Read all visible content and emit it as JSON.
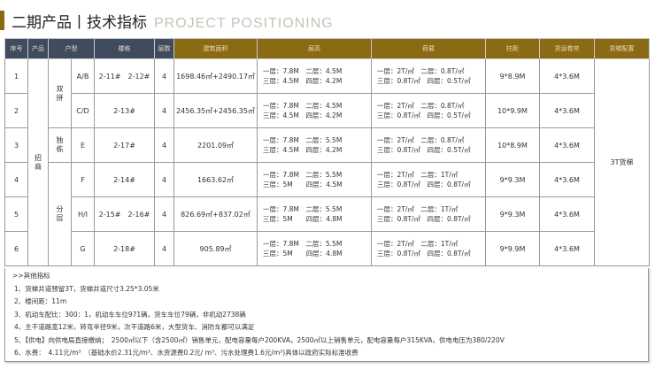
{
  "title": {
    "cn": "二期产品丨技术指标",
    "en": "PROJECT POSITIONING"
  },
  "headers": {
    "no": "序号",
    "product": "产品",
    "type": "户型",
    "building": "楼栋",
    "floors": "层数",
    "area": "建筑面积",
    "height": "层高",
    "load": "荷载",
    "column": "柱距",
    "shutter": "货运卷帘",
    "elevator": "货梯配置"
  },
  "product": "招商",
  "groups": [
    "双拼",
    "独栋",
    "分层"
  ],
  "elevator": "3T货梯",
  "rows": [
    {
      "no": "1",
      "type": "A/B",
      "building": "2-11#　2-12#",
      "floors": "4",
      "area": "1698.46㎡+2490.17㎡",
      "h1": "一层：7.8M　二层：4.5M",
      "h2": "三层：4.5M　四层：4.2M",
      "l1": "一层：2T/㎡　二层：0.8T/㎡",
      "l2": "三层：0.8T/㎡　四层：0.5T/㎡",
      "column": "9*8.9M",
      "shutter": "4*3.6M"
    },
    {
      "no": "2",
      "type": "C/D",
      "building": "2-13#",
      "floors": "4",
      "area": "2456.35㎡+2456.35㎡",
      "h1": "一层：7.8M　二层：4.5M",
      "h2": "三层：4.5M　四层：4.2M",
      "l1": "一层：2T/㎡　二层：0.8T/㎡",
      "l2": "三层：0.8T/㎡　四层：0.5T/㎡",
      "column": "10*9.9M",
      "shutter": "4*3.6M"
    },
    {
      "no": "3",
      "type": "E",
      "building": "2-17#",
      "floors": "4",
      "area": "2201.09㎡",
      "h1": "一层：7.8M　二层：5.5M",
      "h2": "三层：4.5M　四层：4.2M",
      "l1": "一层：2T/㎡　二层：0.8T/㎡",
      "l2": "三层：0.8T/㎡　四层：0.5T/㎡",
      "column": "10*8.9M",
      "shutter": "4*3.6M"
    },
    {
      "no": "4",
      "type": "F",
      "building": "2-14#",
      "floors": "4",
      "area": "1663.62㎡",
      "h1": "一层：7.8M　二层：5.5M",
      "h2": "三层：5M　　四层：4.5M",
      "l1": "一层：2T/㎡　二层：1T/㎡",
      "l2": "三层：0.8T/㎡　四层：0.8T/㎡",
      "column": "9*9.3M",
      "shutter": "4*3.6M"
    },
    {
      "no": "5",
      "type": "H/I",
      "building": "2-15#　2-16#",
      "floors": "4",
      "area": "826.69㎡+837.02㎡",
      "h1": "一层：7.8M　二层：5.5M",
      "h2": "三层：5M　　四层：4.8M",
      "l1": "一层：2T/㎡　二层：1T/㎡",
      "l2": "三层：0.8T/㎡　四层：0.8T/㎡",
      "column": "9*9.3M",
      "shutter": "4*3.6M"
    },
    {
      "no": "6",
      "type": "G",
      "building": "2-18#",
      "floors": "4",
      "area": "905.89㎡",
      "h1": "一层：7.8M　二层：5.5M",
      "h2": "三层：5M　　四层：4.8M",
      "l1": "一层：2T/㎡　二层：1T/㎡",
      "l2": "三层：0.8T/㎡　四层：0.8T/㎡",
      "column": "9*9.9M",
      "shutter": "4*3.6M"
    }
  ],
  "notes": {
    "heading": ">>其他指标",
    "items": [
      "1、货梯井道预留3T，货梯井道尺寸3.25*3.05米",
      "2、楼间距：11m",
      "3、机动车配比：300：1，机动车车位971辆，货车车位79辆，非机动2738辆",
      "4、主干道路宽12米，转弯半径9米，次干道路6米，大型货车、消防车都可以满足",
      "5、【供电】向供电局直接缴纳；　2500㎡以下（含2500㎡）销售单元，配电容量每户200KVA，2500㎡以上销售单元，配电容量每户315KVA，供电电压为380/220V",
      "6、水费：　4.11元/m³　（基础水价2.31元/m³、水资源费0.2元/ m³、污水处理费1.6元/m³)具体以政府实际标准收费"
    ]
  }
}
